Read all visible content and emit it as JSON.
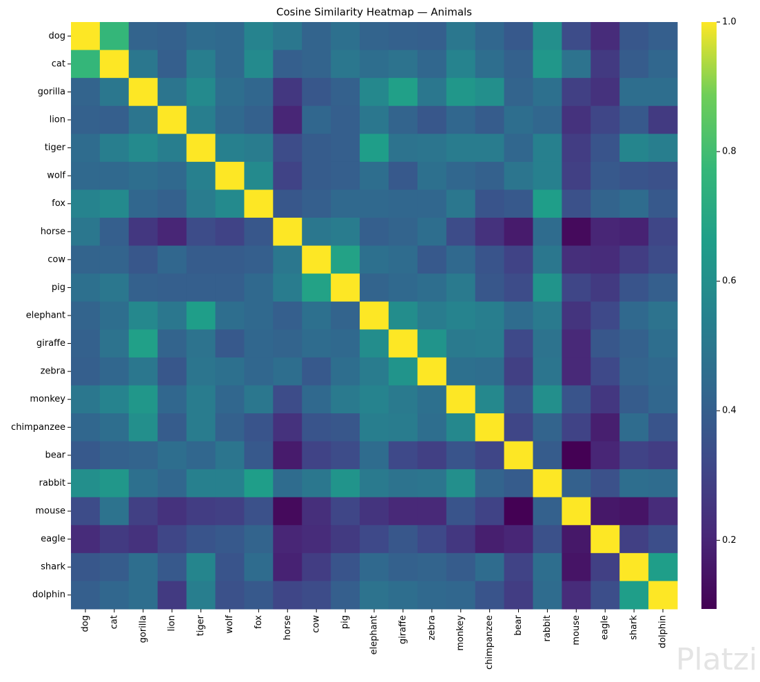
{
  "chart_data": {
    "type": "heatmap",
    "title": "Cosine Similarity Heatmap — Animals",
    "categories": [
      "dog",
      "cat",
      "gorilla",
      "lion",
      "tiger",
      "wolf",
      "fox",
      "horse",
      "cow",
      "pig",
      "elephant",
      "giraffe",
      "zebra",
      "monkey",
      "chimpanzee",
      "bear",
      "rabbit",
      "mouse",
      "eagle",
      "shark",
      "dolphin"
    ],
    "values": [
      [
        1,
        0.77,
        0.42,
        0.41,
        0.45,
        0.44,
        0.55,
        0.5,
        0.42,
        0.47,
        0.42,
        0.41,
        0.4,
        0.5,
        0.43,
        0.38,
        0.6,
        0.33,
        0.22,
        0.37,
        0.4
      ],
      [
        0.77,
        1,
        0.5,
        0.4,
        0.53,
        0.44,
        0.58,
        0.4,
        0.42,
        0.5,
        0.46,
        0.48,
        0.43,
        0.55,
        0.46,
        0.41,
        0.63,
        0.48,
        0.27,
        0.39,
        0.43
      ],
      [
        0.42,
        0.5,
        1,
        0.49,
        0.58,
        0.46,
        0.43,
        0.26,
        0.37,
        0.41,
        0.57,
        0.67,
        0.5,
        0.63,
        0.6,
        0.42,
        0.47,
        0.29,
        0.24,
        0.46,
        0.46
      ],
      [
        0.41,
        0.4,
        0.49,
        1,
        0.53,
        0.44,
        0.41,
        0.2,
        0.43,
        0.4,
        0.5,
        0.42,
        0.37,
        0.43,
        0.39,
        0.46,
        0.43,
        0.24,
        0.31,
        0.38,
        0.27
      ],
      [
        0.45,
        0.53,
        0.58,
        0.53,
        1,
        0.54,
        0.52,
        0.33,
        0.39,
        0.4,
        0.66,
        0.48,
        0.49,
        0.52,
        0.52,
        0.43,
        0.54,
        0.28,
        0.36,
        0.56,
        0.53
      ],
      [
        0.44,
        0.44,
        0.46,
        0.44,
        0.54,
        1,
        0.58,
        0.3,
        0.39,
        0.4,
        0.46,
        0.38,
        0.47,
        0.43,
        0.41,
        0.49,
        0.54,
        0.29,
        0.38,
        0.36,
        0.35
      ],
      [
        0.55,
        0.58,
        0.43,
        0.41,
        0.52,
        0.58,
        1,
        0.37,
        0.4,
        0.44,
        0.44,
        0.43,
        0.43,
        0.5,
        0.36,
        0.38,
        0.66,
        0.35,
        0.42,
        0.45,
        0.38
      ],
      [
        0.5,
        0.4,
        0.26,
        0.2,
        0.33,
        0.3,
        0.37,
        1,
        0.5,
        0.52,
        0.4,
        0.42,
        0.46,
        0.33,
        0.24,
        0.17,
        0.45,
        0.12,
        0.2,
        0.19,
        0.31
      ],
      [
        0.42,
        0.42,
        0.37,
        0.43,
        0.39,
        0.39,
        0.4,
        0.5,
        1,
        0.68,
        0.47,
        0.45,
        0.38,
        0.44,
        0.36,
        0.3,
        0.5,
        0.23,
        0.22,
        0.28,
        0.33
      ],
      [
        0.47,
        0.5,
        0.41,
        0.4,
        0.4,
        0.4,
        0.44,
        0.52,
        0.68,
        1,
        0.42,
        0.44,
        0.46,
        0.51,
        0.37,
        0.33,
        0.62,
        0.31,
        0.27,
        0.36,
        0.4
      ],
      [
        0.42,
        0.46,
        0.57,
        0.5,
        0.66,
        0.46,
        0.44,
        0.4,
        0.47,
        0.42,
        1,
        0.59,
        0.52,
        0.55,
        0.53,
        0.45,
        0.51,
        0.25,
        0.32,
        0.44,
        0.48
      ],
      [
        0.41,
        0.48,
        0.67,
        0.42,
        0.48,
        0.38,
        0.43,
        0.42,
        0.45,
        0.44,
        0.59,
        1,
        0.62,
        0.51,
        0.52,
        0.32,
        0.48,
        0.21,
        0.37,
        0.41,
        0.46
      ],
      [
        0.4,
        0.43,
        0.5,
        0.37,
        0.49,
        0.47,
        0.43,
        0.46,
        0.38,
        0.46,
        0.52,
        0.62,
        1,
        0.47,
        0.46,
        0.29,
        0.49,
        0.21,
        0.32,
        0.42,
        0.44
      ],
      [
        0.5,
        0.55,
        0.63,
        0.43,
        0.52,
        0.43,
        0.5,
        0.33,
        0.44,
        0.51,
        0.55,
        0.51,
        0.47,
        1,
        0.57,
        0.36,
        0.6,
        0.36,
        0.26,
        0.39,
        0.43
      ],
      [
        0.43,
        0.46,
        0.6,
        0.39,
        0.52,
        0.41,
        0.36,
        0.24,
        0.36,
        0.37,
        0.53,
        0.52,
        0.46,
        0.57,
        1,
        0.31,
        0.42,
        0.3,
        0.18,
        0.45,
        0.36
      ],
      [
        0.38,
        0.41,
        0.42,
        0.46,
        0.43,
        0.49,
        0.38,
        0.17,
        0.3,
        0.33,
        0.45,
        0.32,
        0.29,
        0.36,
        0.31,
        1,
        0.39,
        0.094,
        0.2,
        0.3,
        0.28
      ],
      [
        0.6,
        0.63,
        0.47,
        0.43,
        0.54,
        0.54,
        0.66,
        0.45,
        0.5,
        0.62,
        0.51,
        0.48,
        0.49,
        0.6,
        0.42,
        0.39,
        1,
        0.41,
        0.35,
        0.46,
        0.45
      ],
      [
        0.33,
        0.48,
        0.29,
        0.24,
        0.28,
        0.29,
        0.35,
        0.12,
        0.23,
        0.31,
        0.25,
        0.21,
        0.21,
        0.36,
        0.3,
        0.094,
        0.41,
        1,
        0.16,
        0.15,
        0.22
      ],
      [
        0.22,
        0.27,
        0.24,
        0.31,
        0.36,
        0.38,
        0.42,
        0.2,
        0.22,
        0.27,
        0.32,
        0.37,
        0.32,
        0.26,
        0.18,
        0.2,
        0.35,
        0.16,
        1,
        0.29,
        0.34
      ],
      [
        0.37,
        0.39,
        0.46,
        0.38,
        0.56,
        0.36,
        0.45,
        0.19,
        0.28,
        0.36,
        0.44,
        0.41,
        0.42,
        0.39,
        0.45,
        0.3,
        0.46,
        0.15,
        0.29,
        1,
        0.66
      ],
      [
        0.4,
        0.43,
        0.46,
        0.27,
        0.53,
        0.35,
        0.38,
        0.31,
        0.33,
        0.4,
        0.48,
        0.46,
        0.44,
        0.43,
        0.36,
        0.28,
        0.45,
        0.22,
        0.34,
        0.66,
        1
      ]
    ],
    "colormap": "viridis",
    "clim": [
      0.094,
      1.0
    ],
    "colorbar_ticks": [
      0.2,
      0.4,
      0.6,
      0.8,
      {
        "value": 1.0,
        "label": "1.0"
      }
    ],
    "watermark": "Platzi"
  }
}
